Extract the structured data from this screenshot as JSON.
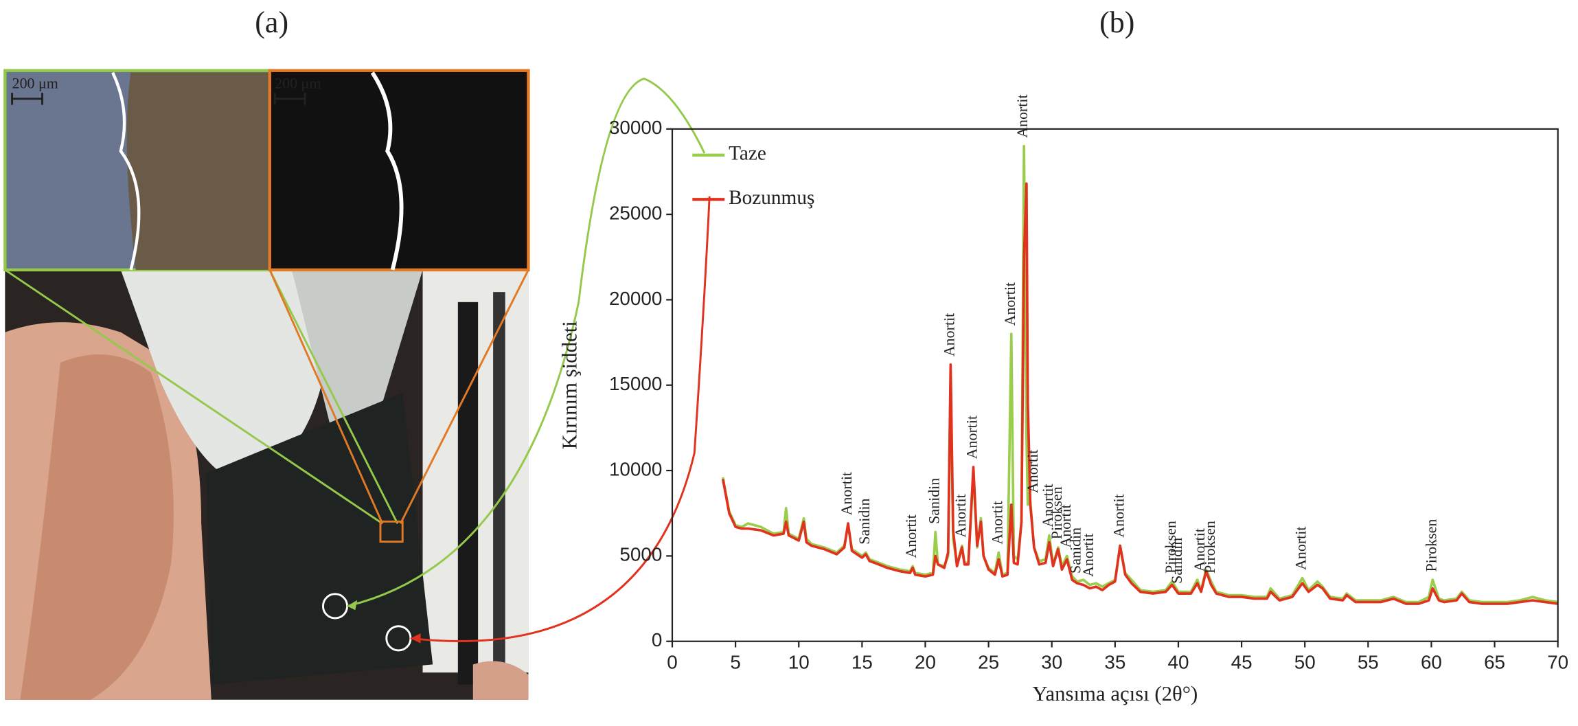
{
  "panel_labels": [
    "(a)",
    "(b)"
  ],
  "scale_bars": [
    "200 μm",
    "200 μm"
  ],
  "chart_data": {
    "type": "line",
    "xlabel": "Yansıma açısı (2θ°)",
    "ylabel": "Kırınım şiddeti",
    "xlim": [
      0,
      70
    ],
    "xticks": [
      0,
      5,
      10,
      15,
      20,
      25,
      30,
      35,
      40,
      45,
      50,
      55,
      60,
      65,
      70
    ],
    "ylim": [
      0,
      30000
    ],
    "yticks": [
      0,
      5000,
      10000,
      15000,
      20000,
      25000,
      30000
    ],
    "x": [
      4,
      4.5,
      5,
      5.5,
      6,
      7,
      8,
      8.8,
      9,
      9.2,
      10,
      10.4,
      10.6,
      11,
      12,
      13,
      13.6,
      13.9,
      14.2,
      15,
      15.3,
      15.6,
      16,
      17,
      18,
      18.8,
      19,
      19.2,
      20,
      20.6,
      20.8,
      21,
      21.5,
      21.8,
      22,
      22.2,
      22.5,
      22.9,
      23.1,
      23.4,
      23.8,
      24.1,
      24.4,
      24.6,
      25,
      25.5,
      25.8,
      26.1,
      26.5,
      26.8,
      27.0,
      27.3,
      27.6,
      27.8,
      28.0,
      28.1,
      28.3,
      28.6,
      29,
      29.5,
      29.8,
      30.1,
      30.5,
      30.8,
      31.2,
      31.6,
      32,
      32.5,
      33,
      33.5,
      34,
      34.5,
      35,
      35.4,
      35.8,
      36.3,
      37,
      38,
      39,
      39.5,
      40,
      41,
      41.5,
      41.8,
      42.2,
      42.6,
      43,
      44,
      45,
      46,
      47,
      47.3,
      48,
      49,
      49.8,
      50.3,
      51,
      51.4,
      52,
      53,
      53.3,
      54,
      55,
      56,
      57,
      58,
      59,
      59.8,
      60.1,
      60.6,
      61,
      62,
      62.4,
      63,
      64,
      65,
      66,
      67,
      68,
      69,
      70
    ],
    "series": [
      {
        "name": "Taze",
        "color": "#9acd4c",
        "values": [
          9600,
          7600,
          6800,
          6700,
          6900,
          6700,
          6300,
          6400,
          7800,
          6300,
          6000,
          7200,
          6000,
          5700,
          5500,
          5200,
          5600,
          6800,
          5400,
          5000,
          5200,
          4800,
          4700,
          4400,
          4200,
          4100,
          4400,
          4000,
          3900,
          4000,
          6400,
          4500,
          4400,
          5000,
          15500,
          6000,
          4500,
          5600,
          4600,
          4600,
          9800,
          5500,
          7200,
          5000,
          4300,
          4000,
          5200,
          3900,
          4000,
          18000,
          5000,
          4800,
          7000,
          29000,
          12000,
          8000,
          8200,
          5500,
          4700,
          4800,
          6200,
          4500,
          5500,
          4400,
          5000,
          3800,
          3500,
          3600,
          3300,
          3400,
          3200,
          3400,
          3600,
          5600,
          4000,
          3600,
          3000,
          2900,
          3000,
          3500,
          2900,
          2900,
          3600,
          3000,
          4200,
          3500,
          2900,
          2700,
          2700,
          2600,
          2600,
          3100,
          2500,
          2700,
          3700,
          3000,
          3500,
          3200,
          2600,
          2500,
          2800,
          2400,
          2400,
          2400,
          2600,
          2300,
          2300,
          2600,
          3600,
          2500,
          2400,
          2500,
          2900,
          2400,
          2300,
          2300,
          2300,
          2400,
          2600,
          2400,
          2300
        ]
      },
      {
        "name": "Bozunmuş",
        "color": "#e0321e",
        "values": [
          9500,
          7500,
          6700,
          6600,
          6600,
          6500,
          6200,
          6300,
          7000,
          6200,
          5900,
          7000,
          5800,
          5600,
          5400,
          5100,
          5500,
          6900,
          5300,
          4900,
          5100,
          4700,
          4600,
          4300,
          4100,
          4000,
          4300,
          3900,
          3800,
          3900,
          5000,
          4500,
          4300,
          5200,
          16200,
          6500,
          4400,
          5500,
          4500,
          4500,
          10200,
          5600,
          7000,
          5000,
          4200,
          3900,
          4800,
          3800,
          3900,
          8000,
          4600,
          4500,
          7000,
          22500,
          26800,
          14000,
          8000,
          5500,
          4500,
          4600,
          5800,
          4400,
          5400,
          4200,
          4800,
          3600,
          3400,
          3300,
          3100,
          3200,
          3000,
          3300,
          3500,
          5600,
          3900,
          3400,
          2900,
          2800,
          2900,
          3300,
          2800,
          2800,
          3400,
          2900,
          4100,
          3300,
          2800,
          2600,
          2600,
          2500,
          2500,
          2900,
          2400,
          2600,
          3400,
          2900,
          3300,
          3100,
          2500,
          2400,
          2700,
          2300,
          2300,
          2300,
          2500,
          2200,
          2200,
          2400,
          3100,
          2400,
          2300,
          2400,
          2800,
          2300,
          2200,
          2200,
          2200,
          2300,
          2400,
          2300,
          2200
        ]
      }
    ],
    "annotations": [
      {
        "text": "Anortit",
        "x": 13.9
      },
      {
        "text": "Sanidin",
        "x": 15.3
      },
      {
        "text": "Anortit",
        "x": 19
      },
      {
        "text": "Sanidin",
        "x": 20.8
      },
      {
        "text": "Anortit",
        "x": 22
      },
      {
        "text": "Anortit",
        "x": 22.9
      },
      {
        "text": "Anortit",
        "x": 23.8
      },
      {
        "text": "Anortit",
        "x": 25.8
      },
      {
        "text": "Anortit",
        "x": 26.8
      },
      {
        "text": "Anortit",
        "x": 27.8
      },
      {
        "text": "Anortit",
        "x": 28.6
      },
      {
        "text": "Anortit",
        "x": 29.8
      },
      {
        "text": "Piroksen",
        "x": 30.5
      },
      {
        "text": "Anortit",
        "x": 31.2
      },
      {
        "text": "Sanidin",
        "x": 32
      },
      {
        "text": "Anortit",
        "x": 33
      },
      {
        "text": "Anortit",
        "x": 35.4
      },
      {
        "text": "Piroksen",
        "x": 39.5
      },
      {
        "text": "Sanidin",
        "x": 40
      },
      {
        "text": "Anortit",
        "x": 41.8
      },
      {
        "text": "Piroksen",
        "x": 42.6
      },
      {
        "text": "Anortit",
        "x": 49.8
      },
      {
        "text": "Piroksen",
        "x": 60.1
      }
    ]
  }
}
